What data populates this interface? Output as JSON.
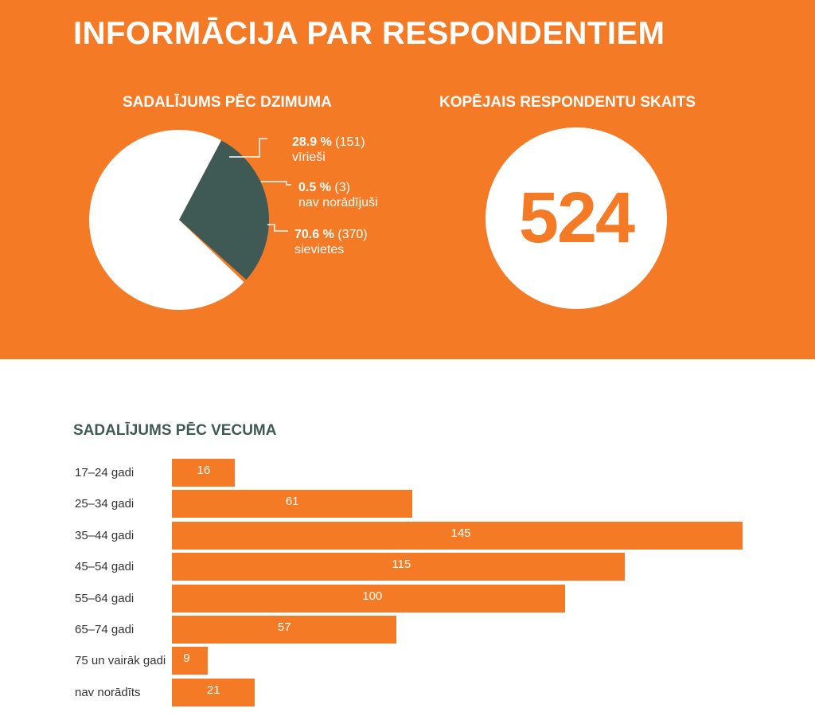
{
  "page": {
    "title": "INFORMĀCIJA PAR RESPONDENTIEM",
    "colors": {
      "accent": "#f47a25",
      "dark": "#3f5a55",
      "light": "#ffffff"
    }
  },
  "gender": {
    "title": "SADALĪJUMS PĒC DZIMUMA",
    "slices": [
      {
        "pct": "28.9 %",
        "count": "(151)",
        "label": "vīrieši",
        "value": 151,
        "color": "#3f5a55"
      },
      {
        "pct": "0.5 %",
        "count": "(3)",
        "label": "nav norādījuši",
        "value": 3,
        "color": "#f47a25"
      },
      {
        "pct": "70.6 %",
        "count": "(370)",
        "label": "sievietes",
        "value": 370,
        "color": "#ffffff"
      }
    ]
  },
  "total": {
    "title": "KOPĒJAIS RESPONDENTU SKAITS",
    "value": "524"
  },
  "chart_data": [
    {
      "type": "pie",
      "title": "SADALĪJUMS PĒC DZIMUMA",
      "categories": [
        "vīrieši",
        "nav norādījuši",
        "sievietes"
      ],
      "values": [
        151,
        3,
        370
      ],
      "percentages": [
        28.9,
        0.5,
        70.6
      ]
    },
    {
      "type": "bar",
      "orientation": "horizontal",
      "title": "SADALĪJUMS PĒC VECUMA",
      "categories": [
        "17–24 gadi",
        "25–34 gadi",
        "35–44 gadi",
        "45–54 gadi",
        "55–64 gadi",
        "65–74 gadi",
        "75 un vairāk gadi",
        "nav norādīts"
      ],
      "values": [
        16,
        61,
        145,
        115,
        100,
        57,
        9,
        21
      ],
      "xlim": [
        0,
        145
      ],
      "grid": false
    }
  ]
}
